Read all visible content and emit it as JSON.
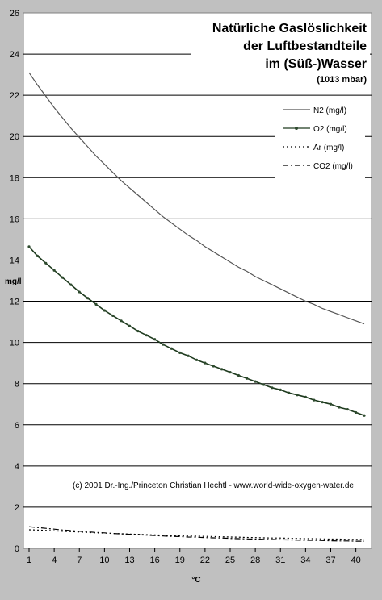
{
  "chart_data": {
    "type": "line",
    "title_lines": [
      "Natürliche Gaslöslichkeit",
      "der Luftbestandteile",
      "im (Süß-)Wasser"
    ],
    "subtitle": "(1013 mbar)",
    "xlabel": "°C",
    "ylabel": "mg/l",
    "annotation": "(c) 2001 Dr.-Ing./Princeton Christian Hechtl - www.world-wide-oxygen-water.de",
    "xlim": [
      1,
      41
    ],
    "ylim": [
      0,
      26
    ],
    "x_ticks": [
      1,
      4,
      7,
      10,
      13,
      16,
      19,
      22,
      25,
      28,
      31,
      34,
      37,
      40
    ],
    "y_ticks": [
      0,
      2,
      4,
      6,
      8,
      10,
      12,
      14,
      16,
      18,
      20,
      22,
      24,
      26
    ],
    "grid": true,
    "legend_position": "top-right",
    "x": [
      1,
      2,
      3,
      4,
      5,
      6,
      7,
      8,
      9,
      10,
      11,
      12,
      13,
      14,
      15,
      16,
      17,
      18,
      19,
      20,
      21,
      22,
      23,
      24,
      25,
      26,
      27,
      28,
      29,
      30,
      31,
      32,
      33,
      34,
      35,
      36,
      37,
      38,
      39,
      40,
      41
    ],
    "series": [
      {
        "name": "N2 (mg/l)",
        "color": "#555555",
        "style": "solid",
        "markers": false,
        "values": [
          23.1,
          22.5,
          21.95,
          21.4,
          20.9,
          20.4,
          19.95,
          19.5,
          19.05,
          18.65,
          18.25,
          17.85,
          17.5,
          17.15,
          16.8,
          16.45,
          16.1,
          15.8,
          15.5,
          15.2,
          14.95,
          14.65,
          14.4,
          14.15,
          13.9,
          13.65,
          13.45,
          13.2,
          13.0,
          12.8,
          12.6,
          12.4,
          12.2,
          12.0,
          11.85,
          11.65,
          11.5,
          11.35,
          11.2,
          11.05,
          10.9
        ]
      },
      {
        "name": "O2 (mg/l)",
        "color": "#1e3a1e",
        "style": "solid",
        "markers": true,
        "values": [
          14.65,
          14.2,
          13.85,
          13.5,
          13.15,
          12.8,
          12.45,
          12.15,
          11.85,
          11.55,
          11.3,
          11.05,
          10.8,
          10.55,
          10.35,
          10.15,
          9.9,
          9.7,
          9.5,
          9.35,
          9.15,
          9.0,
          8.85,
          8.7,
          8.55,
          8.4,
          8.25,
          8.1,
          7.95,
          7.8,
          7.7,
          7.55,
          7.45,
          7.35,
          7.2,
          7.1,
          7.0,
          6.85,
          6.75,
          6.6,
          6.45
        ]
      },
      {
        "name": "Ar (mg/l)",
        "color": "#000000",
        "style": "dotted",
        "markers": false,
        "values": [
          0.9,
          0.89,
          0.87,
          0.85,
          0.83,
          0.81,
          0.79,
          0.77,
          0.75,
          0.74,
          0.72,
          0.71,
          0.69,
          0.68,
          0.66,
          0.65,
          0.64,
          0.62,
          0.61,
          0.6,
          0.59,
          0.58,
          0.57,
          0.56,
          0.55,
          0.54,
          0.53,
          0.52,
          0.51,
          0.5,
          0.5,
          0.49,
          0.48,
          0.47,
          0.47,
          0.46,
          0.45,
          0.45,
          0.44,
          0.44,
          0.43
        ]
      },
      {
        "name": "CO2 (mg/l)",
        "color": "#000000",
        "style": "dashdot",
        "markers": false,
        "values": [
          1.05,
          1.01,
          0.97,
          0.93,
          0.89,
          0.86,
          0.83,
          0.8,
          0.77,
          0.75,
          0.72,
          0.7,
          0.68,
          0.66,
          0.64,
          0.62,
          0.6,
          0.58,
          0.57,
          0.55,
          0.54,
          0.52,
          0.51,
          0.5,
          0.48,
          0.47,
          0.46,
          0.45,
          0.44,
          0.43,
          0.42,
          0.41,
          0.4,
          0.39,
          0.39,
          0.38,
          0.37,
          0.36,
          0.36,
          0.35,
          0.35
        ]
      }
    ]
  }
}
